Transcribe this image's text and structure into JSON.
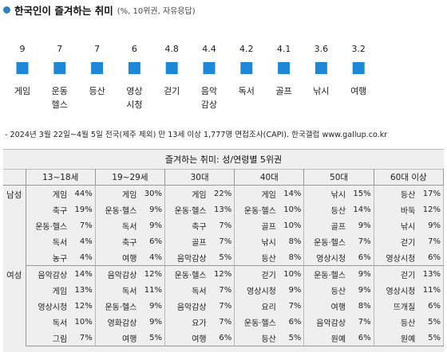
{
  "title": "한국인이 즐겨하는 취미",
  "subtitle": "(%, 10위권, 자유응답)",
  "accent": "#1e88d8",
  "chart_data": {
    "type": "bar",
    "categories": [
      "게임",
      "운동·헬스",
      "등산",
      "영상·시청",
      "걷기",
      "음악·감상",
      "독서",
      "골프",
      "낚시",
      "여행"
    ],
    "category_lines": [
      [
        "게임"
      ],
      [
        "운동",
        "헬스"
      ],
      [
        "등산"
      ],
      [
        "영상",
        "시청"
      ],
      [
        "걷기"
      ],
      [
        "음악",
        "감상"
      ],
      [
        "독서"
      ],
      [
        "골프"
      ],
      [
        "낚시"
      ],
      [
        "여행"
      ]
    ],
    "value_labels": [
      "9",
      "7",
      "7",
      "6",
      "4.8",
      "4.4",
      "4.2",
      "4.1",
      "3.6",
      "3.2"
    ],
    "values": [
      9,
      7,
      7,
      6,
      4.8,
      4.4,
      4.2,
      4.1,
      3.6,
      3.2
    ],
    "series_color": "#1e88d8",
    "grid": false,
    "legend": "none"
  },
  "source": "- 2024년 3월 22일~4월 5일 전국(제주 제외) 만 13세 이상 1,777명 면접조사(CAPI). 한국갤럽 www.gallup.co.kr",
  "table": {
    "title": "즐겨하는 취미: 성/연령별 5위권",
    "age_groups": [
      "13~18세",
      "19~29세",
      "30대",
      "40대",
      "50대",
      "60대 이상"
    ],
    "groups": [
      {
        "label": "남성",
        "rows": [
          [
            [
              "게임",
              "44%"
            ],
            [
              "게임",
              "30%"
            ],
            [
              "게임",
              "22%"
            ],
            [
              "게임",
              "14%"
            ],
            [
              "낚시",
              "15%"
            ],
            [
              "등산",
              "17%"
            ]
          ],
          [
            [
              "축구",
              "19%"
            ],
            [
              "운동·헬스",
              "9%"
            ],
            [
              "운동·헬스",
              "13%"
            ],
            [
              "운동·헬스",
              "10%"
            ],
            [
              "등산",
              "14%"
            ],
            [
              "바둑",
              "12%"
            ]
          ],
          [
            [
              "운동·헬스",
              "7%"
            ],
            [
              "독서",
              "9%"
            ],
            [
              "축구",
              "7%"
            ],
            [
              "골프",
              "10%"
            ],
            [
              "골프",
              "9%"
            ],
            [
              "낚시",
              "9%"
            ]
          ],
          [
            [
              "독서",
              "4%"
            ],
            [
              "축구",
              "6%"
            ],
            [
              "골프",
              "7%"
            ],
            [
              "낚시",
              "8%"
            ],
            [
              "운동·헬스",
              "7%"
            ],
            [
              "걷기",
              "7%"
            ]
          ],
          [
            [
              "농구",
              "4%"
            ],
            [
              "여행",
              "4%"
            ],
            [
              "음악감상",
              "5%"
            ],
            [
              "등산",
              "8%"
            ],
            [
              "영상시청",
              "6%"
            ],
            [
              "영상시청",
              "6%"
            ]
          ]
        ]
      },
      {
        "label": "여성",
        "rows": [
          [
            [
              "음악감상",
              "14%"
            ],
            [
              "음악감상",
              "12%"
            ],
            [
              "운동·헬스",
              "12%"
            ],
            [
              "걷기",
              "10%"
            ],
            [
              "운동·헬스",
              "9%"
            ],
            [
              "걷기",
              "13%"
            ]
          ],
          [
            [
              "게임",
              "13%"
            ],
            [
              "독서",
              "11%"
            ],
            [
              "독서",
              "7%"
            ],
            [
              "영상시청",
              "9%"
            ],
            [
              "등산",
              "9%"
            ],
            [
              "영상시청",
              "11%"
            ]
          ],
          [
            [
              "영상시청",
              "12%"
            ],
            [
              "운동·헬스",
              "9%"
            ],
            [
              "음악감상",
              "7%"
            ],
            [
              "요리",
              "7%"
            ],
            [
              "여행",
              "8%"
            ],
            [
              "뜨개질",
              "6%"
            ]
          ],
          [
            [
              "독서",
              "10%"
            ],
            [
              "영화감상",
              "9%"
            ],
            [
              "요가",
              "7%"
            ],
            [
              "운동·헬스",
              "6%"
            ],
            [
              "음악감상",
              "7%"
            ],
            [
              "등산",
              "5%"
            ]
          ],
          [
            [
              "그림",
              "7%"
            ],
            [
              "여행",
              "5%"
            ],
            [
              "여행",
              "6%"
            ],
            [
              "등산",
              "5%"
            ],
            [
              "원예",
              "6%"
            ],
            [
              "원예",
              "5%"
            ]
          ]
        ]
      }
    ]
  }
}
